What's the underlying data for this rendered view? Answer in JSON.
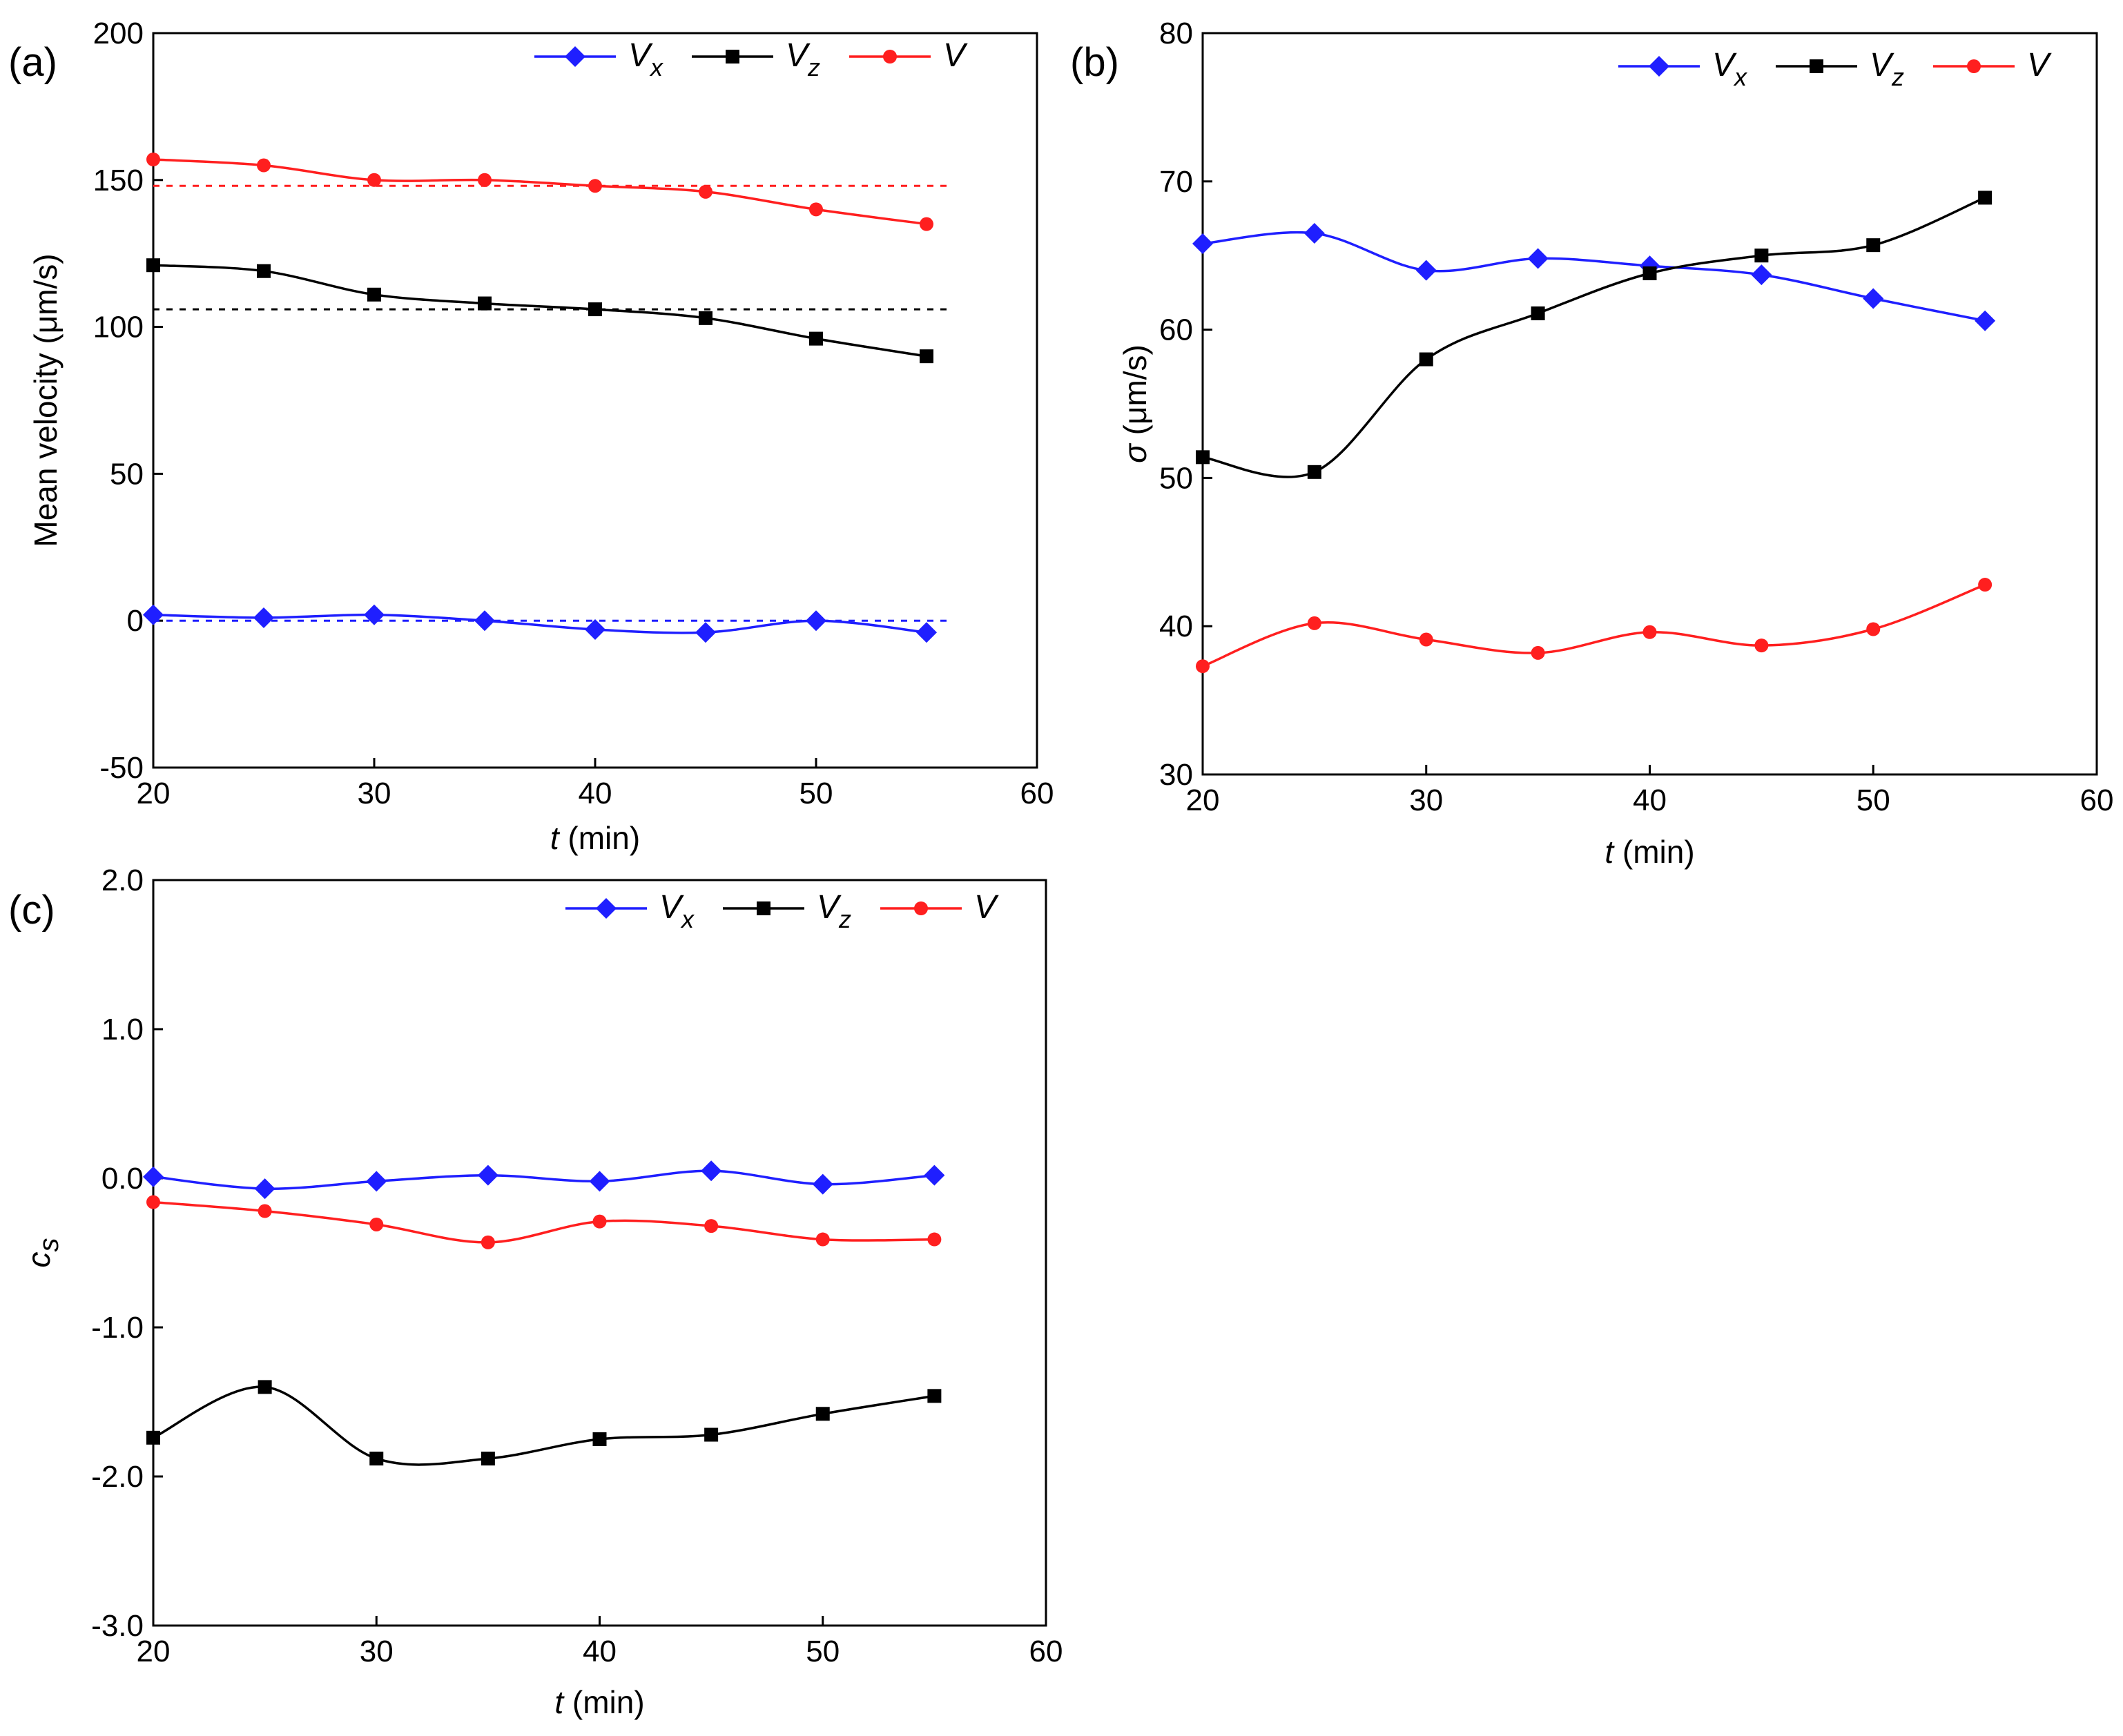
{
  "chart_data": [
    {
      "type": "line",
      "panel_label": "(a)",
      "xlabel_var": "t",
      "xlabel_unit": " (min)",
      "ylabel": "Mean velocity (μm/s)",
      "xlim": [
        20,
        60
      ],
      "ylim": [
        -50,
        200
      ],
      "xticks": [
        20,
        30,
        40,
        50,
        60
      ],
      "yticks": [
        -50,
        0,
        50,
        100,
        150,
        200
      ],
      "legend": "top-right",
      "series": [
        {
          "name": "V",
          "sub": "x",
          "color": "#1f1fff",
          "marker": "diamond",
          "x": [
            20,
            25,
            30,
            35,
            40,
            45,
            50,
            55
          ],
          "y": [
            2,
            1,
            2,
            0,
            -3,
            -4,
            0,
            -4
          ]
        },
        {
          "name": "V",
          "sub": "z",
          "color": "#000000",
          "marker": "square",
          "x": [
            20,
            25,
            30,
            35,
            40,
            45,
            50,
            55
          ],
          "y": [
            121,
            119,
            111,
            108,
            106,
            103,
            96,
            90
          ]
        },
        {
          "name": "V",
          "sub": "",
          "color": "#ff1f1f",
          "marker": "circle",
          "x": [
            20,
            25,
            30,
            35,
            40,
            45,
            50,
            55
          ],
          "y": [
            157,
            155,
            150,
            150,
            148,
            146,
            140,
            135
          ]
        }
      ],
      "reference_lines": [
        {
          "y": 0,
          "color": "#1f1fff"
        },
        {
          "y": 106,
          "color": "#000000"
        },
        {
          "y": 148,
          "color": "#ff1f1f"
        }
      ]
    },
    {
      "type": "line",
      "panel_label": "(b)",
      "xlabel_var": "t",
      "xlabel_unit": " (min)",
      "ylabel_var": "σ",
      "ylabel_unit": " (μm/s)",
      "xlim": [
        20,
        60
      ],
      "ylim": [
        30,
        80
      ],
      "xticks": [
        20,
        30,
        40,
        50,
        60
      ],
      "yticks": [
        30,
        40,
        50,
        60,
        70,
        80
      ],
      "legend": "top-right",
      "series": [
        {
          "name": "V",
          "sub": "x",
          "color": "#1f1fff",
          "marker": "diamond",
          "x": [
            20,
            25,
            30,
            35,
            40,
            45,
            50,
            55
          ],
          "y": [
            65.8,
            66.5,
            64.0,
            64.8,
            64.3,
            63.7,
            62.1,
            60.6
          ]
        },
        {
          "name": "V",
          "sub": "z",
          "color": "#000000",
          "marker": "square",
          "x": [
            20,
            25,
            30,
            35,
            40,
            45,
            50,
            55
          ],
          "y": [
            51.4,
            50.4,
            58.0,
            61.1,
            63.8,
            65.0,
            65.7,
            68.9
          ]
        },
        {
          "name": "V",
          "sub": "",
          "color": "#ff1f1f",
          "marker": "circle",
          "x": [
            20,
            25,
            30,
            35,
            40,
            45,
            50,
            55
          ],
          "y": [
            37.3,
            40.2,
            39.1,
            38.2,
            39.6,
            38.7,
            39.8,
            42.8
          ]
        }
      ]
    },
    {
      "type": "line",
      "panel_label": "(c)",
      "xlabel_var": "t",
      "xlabel_unit": " (min)",
      "ylabel_var": "c",
      "ylabel_sub": "s",
      "xlim": [
        20,
        60
      ],
      "ylim": [
        -3.0,
        2.0
      ],
      "xticks": [
        20,
        30,
        40,
        50,
        60
      ],
      "yticks": [
        -3.0,
        -2.0,
        -1.0,
        0.0,
        1.0,
        2.0
      ],
      "ytick_decimals": 1,
      "legend": "top-right",
      "series": [
        {
          "name": "V",
          "sub": "x",
          "color": "#1f1fff",
          "marker": "diamond",
          "x": [
            20,
            25,
            30,
            35,
            40,
            45,
            50,
            55
          ],
          "y": [
            0.01,
            -0.07,
            -0.02,
            0.02,
            -0.02,
            0.05,
            -0.04,
            0.02
          ]
        },
        {
          "name": "V",
          "sub": "z",
          "color": "#000000",
          "marker": "square",
          "x": [
            20,
            25,
            30,
            35,
            40,
            45,
            50,
            55
          ],
          "y": [
            -1.74,
            -1.4,
            -1.88,
            -1.88,
            -1.75,
            -1.72,
            -1.58,
            -1.46
          ]
        },
        {
          "name": "V",
          "sub": "",
          "color": "#ff1f1f",
          "marker": "circle",
          "x": [
            20,
            25,
            30,
            35,
            40,
            45,
            50,
            55
          ],
          "y": [
            -0.16,
            -0.22,
            -0.31,
            -0.43,
            -0.29,
            -0.32,
            -0.41,
            -0.41
          ]
        }
      ]
    }
  ]
}
